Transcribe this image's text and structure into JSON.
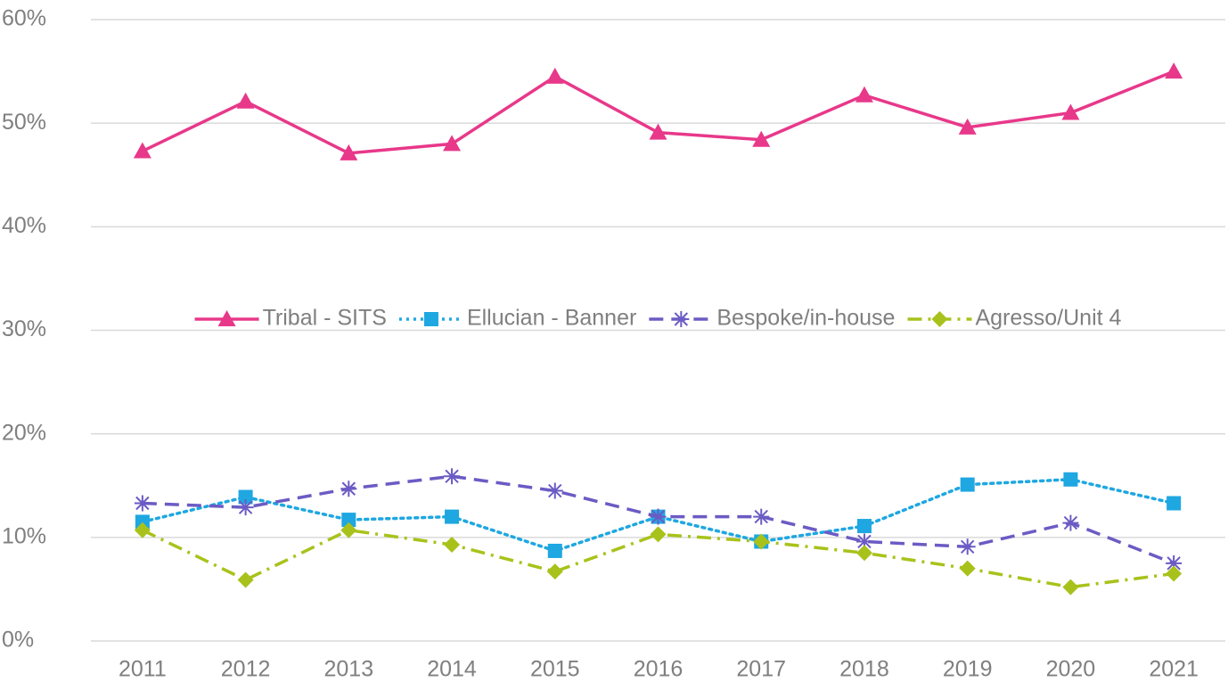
{
  "chart_data": {
    "type": "line",
    "categories": [
      "2011",
      "2012",
      "2013",
      "2014",
      "2015",
      "2016",
      "2017",
      "2018",
      "2019",
      "2020",
      "2021"
    ],
    "series": [
      {
        "name": "Tribal - SITS",
        "color": "#e8388a",
        "marker": "triangle",
        "dash": "solid",
        "values": [
          47.3,
          52.1,
          47.1,
          48.0,
          54.5,
          49.1,
          48.4,
          52.7,
          49.6,
          51.0,
          55.0
        ]
      },
      {
        "name": "Ellucian - Banner",
        "color": "#1ea7e1",
        "marker": "square",
        "dash": "dotted",
        "values": [
          11.5,
          13.9,
          11.7,
          12.0,
          8.7,
          12.0,
          9.6,
          11.1,
          15.1,
          15.6,
          13.3
        ]
      },
      {
        "name": "Bespoke/in-house",
        "color": "#6b5bc4",
        "marker": "asterisk",
        "dash": "dashed",
        "values": [
          13.3,
          12.9,
          14.7,
          15.9,
          14.5,
          12.0,
          12.0,
          9.6,
          9.1,
          11.4,
          7.5
        ]
      },
      {
        "name": "Agresso/Unit 4",
        "color": "#a9c21b",
        "marker": "diamond",
        "dash": "dashdot",
        "values": [
          10.7,
          5.9,
          10.7,
          9.3,
          6.7,
          10.3,
          9.6,
          8.5,
          7.0,
          5.2,
          6.5
        ]
      }
    ],
    "ylim": [
      0,
      60
    ],
    "yticks": [
      {
        "value": 0,
        "label": "0%"
      },
      {
        "value": 10,
        "label": "10%"
      },
      {
        "value": 20,
        "label": "20%"
      },
      {
        "value": 30,
        "label": "30%"
      },
      {
        "value": 40,
        "label": "40%"
      },
      {
        "value": 50,
        "label": "50%"
      },
      {
        "value": 60,
        "label": "60%"
      }
    ],
    "grid": true,
    "legend": "center"
  }
}
